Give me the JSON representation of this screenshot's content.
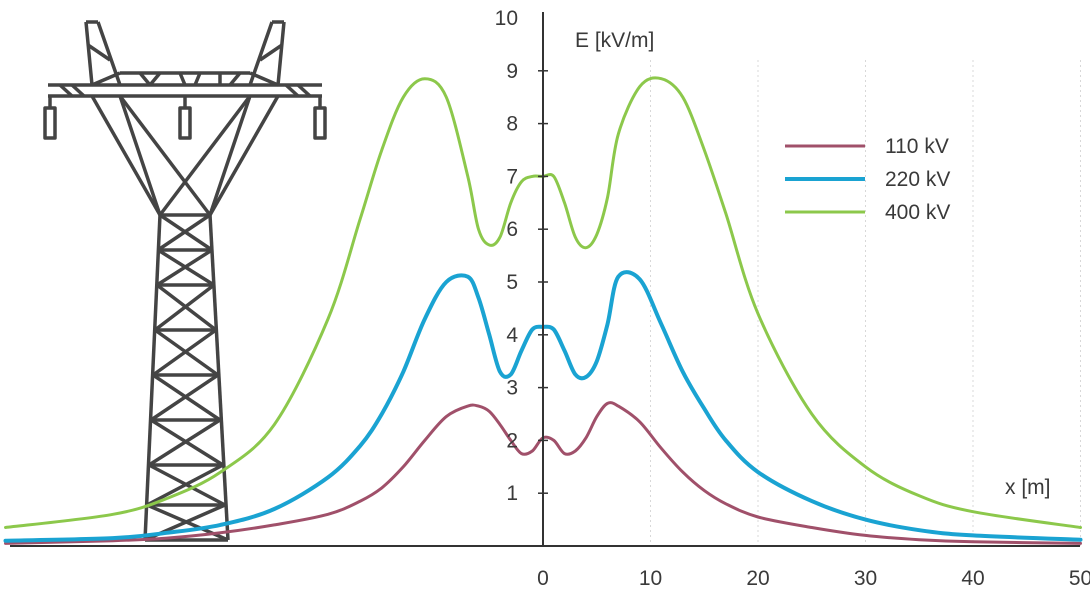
{
  "chart_data": {
    "type": "line",
    "title": "",
    "xlabel": "x [m]",
    "ylabel": "E [kV/m]",
    "xlim": [
      -50,
      50
    ],
    "ylim": [
      0,
      10
    ],
    "x_ticks": [
      0,
      10,
      20,
      30,
      40,
      50
    ],
    "y_ticks": [
      1,
      2,
      3,
      4,
      5,
      6,
      7,
      8,
      9,
      10
    ],
    "grid": "vertical dotted at x ticks",
    "legend_position": "right",
    "x": [
      -50,
      -40,
      -35,
      -30,
      -25,
      -20,
      -17,
      -15,
      -13,
      -11,
      -9,
      -7,
      -6,
      -5,
      -4,
      -3,
      -2,
      -1,
      0,
      1,
      2,
      3,
      4,
      5,
      6,
      7,
      9,
      11,
      13,
      15,
      17,
      20,
      25,
      30,
      35,
      40,
      50
    ],
    "series": [
      {
        "name": "110 kV",
        "color": "#a0506a",
        "values": [
          0.05,
          0.1,
          0.15,
          0.25,
          0.4,
          0.6,
          0.85,
          1.1,
          1.5,
          2.0,
          2.45,
          2.65,
          2.65,
          2.55,
          2.3,
          2.0,
          1.75,
          1.8,
          2.05,
          2.0,
          1.75,
          1.8,
          2.05,
          2.45,
          2.7,
          2.65,
          2.35,
          1.85,
          1.4,
          1.05,
          0.8,
          0.55,
          0.35,
          0.2,
          0.12,
          0.08,
          0.05
        ]
      },
      {
        "name": "220 kV",
        "color": "#1aa3d2",
        "values": [
          0.1,
          0.15,
          0.25,
          0.4,
          0.7,
          1.3,
          1.9,
          2.5,
          3.3,
          4.3,
          5.0,
          5.1,
          4.7,
          4.0,
          3.3,
          3.25,
          3.7,
          4.1,
          4.15,
          4.1,
          3.7,
          3.25,
          3.2,
          3.5,
          4.2,
          5.1,
          5.05,
          4.2,
          3.3,
          2.6,
          2.0,
          1.4,
          0.85,
          0.5,
          0.3,
          0.2,
          0.12
        ]
      },
      {
        "name": "400 kV",
        "color": "#8cc84b",
        "values": [
          0.35,
          0.6,
          0.9,
          1.4,
          2.3,
          4.3,
          6.2,
          7.5,
          8.5,
          8.85,
          8.5,
          7.0,
          6.0,
          5.7,
          5.85,
          6.5,
          6.9,
          7.0,
          7.0,
          7.0,
          6.5,
          5.85,
          5.65,
          5.9,
          6.6,
          7.8,
          8.7,
          8.85,
          8.5,
          7.5,
          6.3,
          4.4,
          2.5,
          1.5,
          0.95,
          0.65,
          0.35
        ]
      }
    ]
  }
}
